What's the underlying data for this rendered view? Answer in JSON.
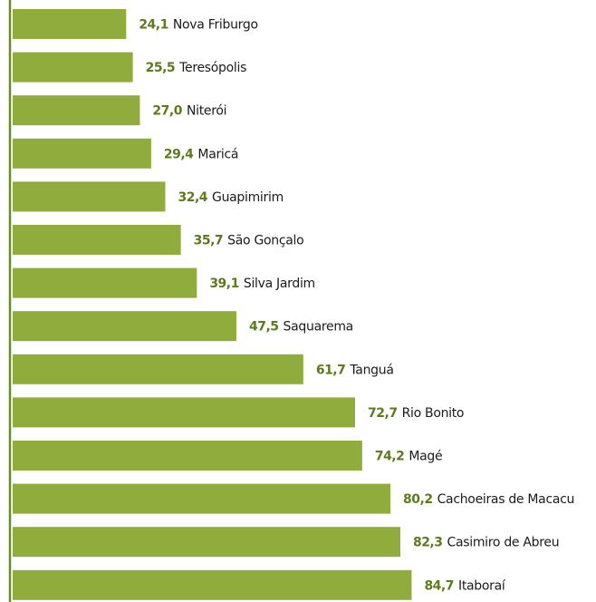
{
  "chart_data": {
    "type": "bar",
    "orientation": "horizontal",
    "categories": [
      "Nova Friburgo",
      "Teresópolis",
      "Niterói",
      "Maricá",
      "Guapimirim",
      "São Gonçalo",
      "Silva Jardim",
      "Saquarema",
      "Tanguá",
      "Rio Bonito",
      "Magé",
      "Cachoeiras de Macacu",
      "Casimiro de Abreu",
      "Itaboraí"
    ],
    "values": [
      24.1,
      25.5,
      27.0,
      29.4,
      32.4,
      35.7,
      39.1,
      47.5,
      61.7,
      72.7,
      74.2,
      80.2,
      82.3,
      84.7
    ],
    "value_labels": [
      "24,1",
      "25,5",
      "27,0",
      "29,4",
      "32,4",
      "35,7",
      "39,1",
      "47,5",
      "61,7",
      "72,7",
      "74,2",
      "80,2",
      "82,3",
      "84,7"
    ],
    "title": "",
    "xlabel": "",
    "ylabel": "",
    "grid": false,
    "legend": "none"
  },
  "colors": {
    "bar": "#8fac3c",
    "value_text": "#5e7a1e",
    "name_text": "#1a1a1a",
    "axis_line": "#6b8a28"
  }
}
